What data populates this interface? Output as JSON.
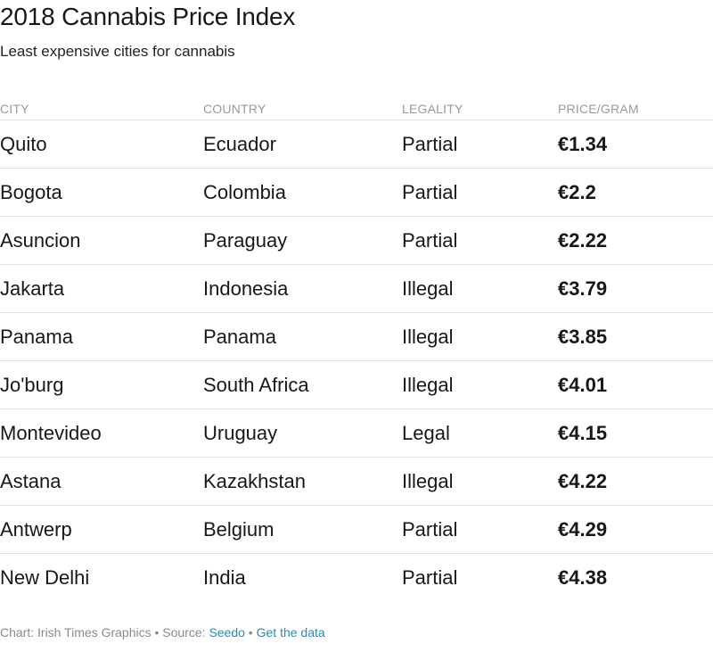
{
  "chart_data": {
    "type": "table",
    "title": "2018 Cannabis Price Index",
    "subtitle": "Least expensive cities for cannabis",
    "columns": [
      "CITY",
      "COUNTRY",
      "LEGALITY",
      "PRICE/GRAM"
    ],
    "rows": [
      {
        "city": "Quito",
        "country": "Ecuador",
        "legality": "Partial",
        "price": "€1.34"
      },
      {
        "city": "Bogota",
        "country": "Colombia",
        "legality": "Partial",
        "price": "€2.2"
      },
      {
        "city": "Asuncion",
        "country": "Paraguay",
        "legality": "Partial",
        "price": "€2.22"
      },
      {
        "city": "Jakarta",
        "country": "Indonesia",
        "legality": "Illegal",
        "price": "€3.79"
      },
      {
        "city": "Panama",
        "country": "Panama",
        "legality": "Illegal",
        "price": "€3.85"
      },
      {
        "city": "Jo'burg",
        "country": "South Africa",
        "legality": "Illegal",
        "price": "€4.01"
      },
      {
        "city": "Montevideo",
        "country": "Uruguay",
        "legality": "Legal",
        "price": "€4.15"
      },
      {
        "city": "Astana",
        "country": "Kazakhstan",
        "legality": "Illegal",
        "price": "€4.22"
      },
      {
        "city": "Antwerp",
        "country": "Belgium",
        "legality": "Partial",
        "price": "€4.29"
      },
      {
        "city": "New Delhi",
        "country": "India",
        "legality": "Partial",
        "price": "€4.38"
      }
    ]
  },
  "footer": {
    "credit": "Chart: Irish Times Graphics",
    "separator": " • ",
    "source_label": "Source: ",
    "source_link": "Seedo",
    "data_link": "Get the data"
  },
  "colors": {
    "text": "#181818",
    "muted": "#9a9a9a",
    "link": "#1d8fc0",
    "rule": "#e2e2e2"
  }
}
